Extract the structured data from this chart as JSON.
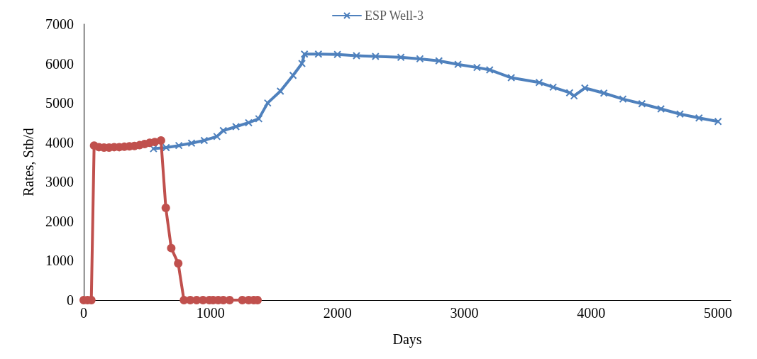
{
  "chart_data": {
    "type": "line",
    "xlabel": "Days",
    "ylabel": "Rates, Stb/d",
    "xlim": [
      0,
      5100
    ],
    "xticks": [
      0,
      1000,
      2000,
      3000,
      4000,
      5000
    ],
    "ylim": [
      0,
      7000
    ],
    "yticks": [
      0,
      1000,
      2000,
      3000,
      4000,
      5000,
      6000,
      7000
    ],
    "grid": false,
    "legend": "top",
    "series": [
      {
        "name": "ESP Well-3",
        "color": "#4f81bd",
        "marker": "cross",
        "x": [
          550,
          650,
          750,
          850,
          950,
          1050,
          1100,
          1200,
          1300,
          1380,
          1450,
          1550,
          1650,
          1720,
          1740,
          1850,
          2000,
          2150,
          2300,
          2500,
          2650,
          2800,
          2950,
          3100,
          3200,
          3370,
          3590,
          3700,
          3830,
          3865,
          3950,
          4100,
          4250,
          4400,
          4550,
          4700,
          4850,
          5000
        ],
        "values": [
          3840,
          3870,
          3920,
          3980,
          4050,
          4150,
          4300,
          4400,
          4500,
          4600,
          5000,
          5300,
          5700,
          6000,
          6240,
          6240,
          6230,
          6200,
          6180,
          6160,
          6120,
          6070,
          5980,
          5900,
          5840,
          5640,
          5520,
          5400,
          5260,
          5180,
          5380,
          5250,
          5100,
          4980,
          4850,
          4720,
          4620,
          4530
        ]
      },
      {
        "color": "#c0504d",
        "marker": "circle",
        "x": [
          0,
          30,
          60,
          82,
          120,
          160,
          200,
          240,
          280,
          320,
          360,
          400,
          440,
          480,
          520,
          560,
          609,
          647,
          690,
          745,
          790,
          840,
          890,
          940,
          990,
          1020,
          1060,
          1100,
          1150,
          1250,
          1300,
          1340,
          1370
        ],
        "values": [
          0,
          0,
          0,
          3920,
          3880,
          3870,
          3870,
          3880,
          3880,
          3890,
          3900,
          3910,
          3930,
          3960,
          3990,
          4010,
          4050,
          2340,
          1320,
          930,
          0,
          0,
          0,
          0,
          0,
          0,
          0,
          0,
          0,
          0,
          0,
          0,
          0
        ]
      }
    ]
  }
}
